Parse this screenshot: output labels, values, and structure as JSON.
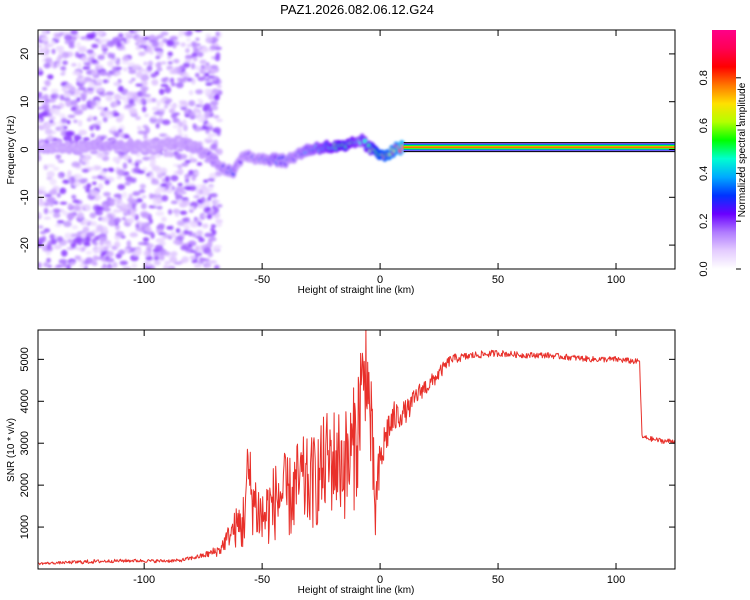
{
  "title": "PAZ1.2026.082.06.12.G24",
  "colors": {
    "snr_line": "#e8302a",
    "colorbar": [
      "#ffffff",
      "#e4ccff",
      "#b07bff",
      "#6a00ff",
      "#0033ff",
      "#00aaff",
      "#00ffd0",
      "#00ff00",
      "#b4ff00",
      "#ffe000",
      "#ff7700",
      "#ff0000",
      "#ff0055",
      "#ff0088"
    ]
  },
  "chart_data": [
    {
      "type": "heatmap",
      "title": "PAZ1.2026.082.06.12.G24",
      "xlabel": "Height of straight line (km)",
      "ylabel": "Frequency (Hz)",
      "xlim": [
        -145,
        125
      ],
      "ylim": [
        -25,
        25
      ],
      "xticks": [
        -100,
        -50,
        0,
        50,
        100
      ],
      "yticks": [
        -20,
        -10,
        0,
        10,
        20
      ],
      "colorbar": {
        "label": "Normalized spectral amplitude",
        "range": [
          0,
          1
        ],
        "ticks": [
          "0.0",
          "0.2",
          "0.4",
          "0.6",
          "0.8"
        ]
      },
      "ridge": {
        "x": [
          -135,
          -125,
          -115,
          -105,
          -95,
          -85,
          -78,
          -72,
          -66,
          -62,
          -58,
          -54,
          -50,
          -45,
          -40,
          -35,
          -30,
          -25,
          -20,
          -15,
          -10,
          -8,
          -5,
          -2,
          0,
          3,
          6,
          10,
          20,
          40,
          60,
          80,
          100,
          125
        ],
        "freq": [
          0.5,
          0.8,
          1.0,
          0.6,
          0.5,
          1.5,
          0.5,
          -1.5,
          -4.0,
          -5.0,
          -1.0,
          -1.5,
          -2.0,
          -2.0,
          -2.5,
          -1.0,
          0.0,
          0.5,
          0.5,
          0.5,
          1.5,
          2.0,
          0.5,
          -0.5,
          -1.0,
          -1.0,
          0.0,
          0.5,
          0.5,
          0.5,
          0.5,
          0.5,
          0.5,
          0.5
        ],
        "amplitude": [
          0.08,
          0.12,
          0.18,
          0.12,
          0.1,
          0.12,
          0.14,
          0.2,
          0.24,
          0.3,
          0.22,
          0.25,
          0.28,
          0.32,
          0.3,
          0.3,
          0.36,
          0.42,
          0.5,
          0.55,
          0.45,
          0.4,
          0.5,
          0.6,
          0.7,
          0.75,
          0.78,
          0.85,
          0.9,
          0.9,
          0.9,
          0.9,
          0.9,
          0.9
        ]
      },
      "noise_region_km": [
        -145,
        -68
      ],
      "noise_level": 0.1
    },
    {
      "type": "line",
      "xlabel": "Height of straight line (km)",
      "ylabel": "SNR (10 * v/v)",
      "xlim": [
        -145,
        125
      ],
      "ylim": [
        0,
        5700
      ],
      "xticks": [
        -100,
        -50,
        0,
        50,
        100
      ],
      "yticks": [
        1000,
        2000,
        3000,
        4000,
        5000
      ],
      "series": [
        {
          "name": "SNR",
          "x": [
            -145,
            -135,
            -125,
            -115,
            -105,
            -95,
            -85,
            -75,
            -68,
            -63,
            -58,
            -56,
            -54,
            -50,
            -46,
            -42,
            -38,
            -34,
            -30,
            -26,
            -22,
            -18,
            -14,
            -11,
            -9,
            -8,
            -7,
            -6,
            -5,
            -4,
            -3,
            -2,
            0,
            3,
            6,
            9,
            12,
            15,
            18,
            21,
            24,
            27,
            30,
            35,
            40,
            50,
            60,
            70,
            80,
            90,
            100,
            108,
            110,
            111,
            115,
            120,
            125
          ],
          "y": [
            130,
            150,
            170,
            190,
            200,
            190,
            200,
            320,
            450,
            900,
            1100,
            2300,
            1700,
            1200,
            1500,
            1800,
            1700,
            2100,
            2000,
            2200,
            2600,
            2600,
            2500,
            2900,
            3500,
            4700,
            3800,
            5600,
            4000,
            3500,
            2300,
            1400,
            2500,
            3300,
            3600,
            3700,
            3800,
            4100,
            4300,
            4400,
            4600,
            4800,
            5000,
            5050,
            5100,
            5150,
            5100,
            5100,
            5050,
            5000,
            5000,
            4950,
            4950,
            3150,
            3100,
            3050,
            3050
          ],
          "noise_amplitude": [
            30,
            30,
            50,
            40,
            40,
            40,
            40,
            60,
            150,
            300,
            800,
            900,
            900,
            800,
            900,
            1000,
            1000,
            1100,
            1100,
            1200,
            1300,
            1300,
            1400,
            1500,
            1600,
            1500,
            1600,
            1700,
            1500,
            1400,
            1200,
            900,
            600,
            500,
            400,
            300,
            260,
            240,
            220,
            200,
            180,
            150,
            120,
            100,
            90,
            80,
            70,
            70,
            70,
            70,
            70,
            70,
            60,
            60,
            60,
            60,
            60
          ]
        }
      ]
    }
  ]
}
